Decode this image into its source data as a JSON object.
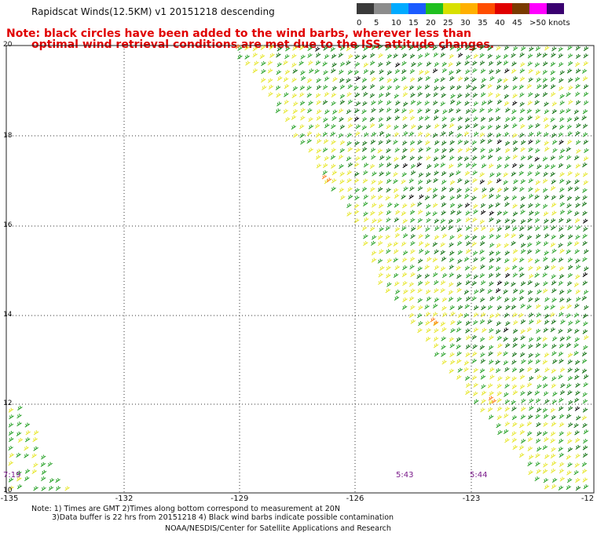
{
  "header": {
    "title": "Rapidscat Winds(12.5KM) v1 20151218 descending",
    "note_line1": "Note: black circles have been added to the wind barbs, wherever less than",
    "note_line2": "optimal wind retrieval conditions are met due to the ISS attitude changes."
  },
  "colorbar": {
    "labels": [
      "0",
      "5",
      "10",
      "15",
      "20",
      "25",
      "30",
      "35",
      "40",
      "45",
      ">50 knots"
    ],
    "colors": [
      "#3a3a3a",
      "#8c8c8c",
      "#00aaff",
      "#1b5bff",
      "#1fbf1f",
      "#d8e000",
      "#ffb000",
      "#ff4d00",
      "#e00000",
      "#7a3a00",
      "#ff00ff",
      "#3a0070"
    ]
  },
  "map": {
    "y_labels": [
      "20",
      "18",
      "16",
      "14",
      "12",
      "10"
    ],
    "x_labels": [
      "-135",
      "-132",
      "-129",
      "-126",
      "-123",
      "-12"
    ],
    "time_labels": [
      "7:19",
      "5:43",
      "5:44"
    ],
    "barb_colors": {
      "dark_green": "#0d6e0d",
      "green": "#25a025",
      "yellow": "#e6e628",
      "orange": "#ff7a1a",
      "black": "#000000"
    }
  },
  "footer": {
    "line1": "Note: 1) Times are GMT 2)Times along bottom correspond to measurement at 20N",
    "line2": "3)Data buffer is 22 hrs from 20151218 4) Black wind barbs indicate possible contamination",
    "line3": "NOAA/NESDIS/Center for Satellite Applications and Research"
  }
}
